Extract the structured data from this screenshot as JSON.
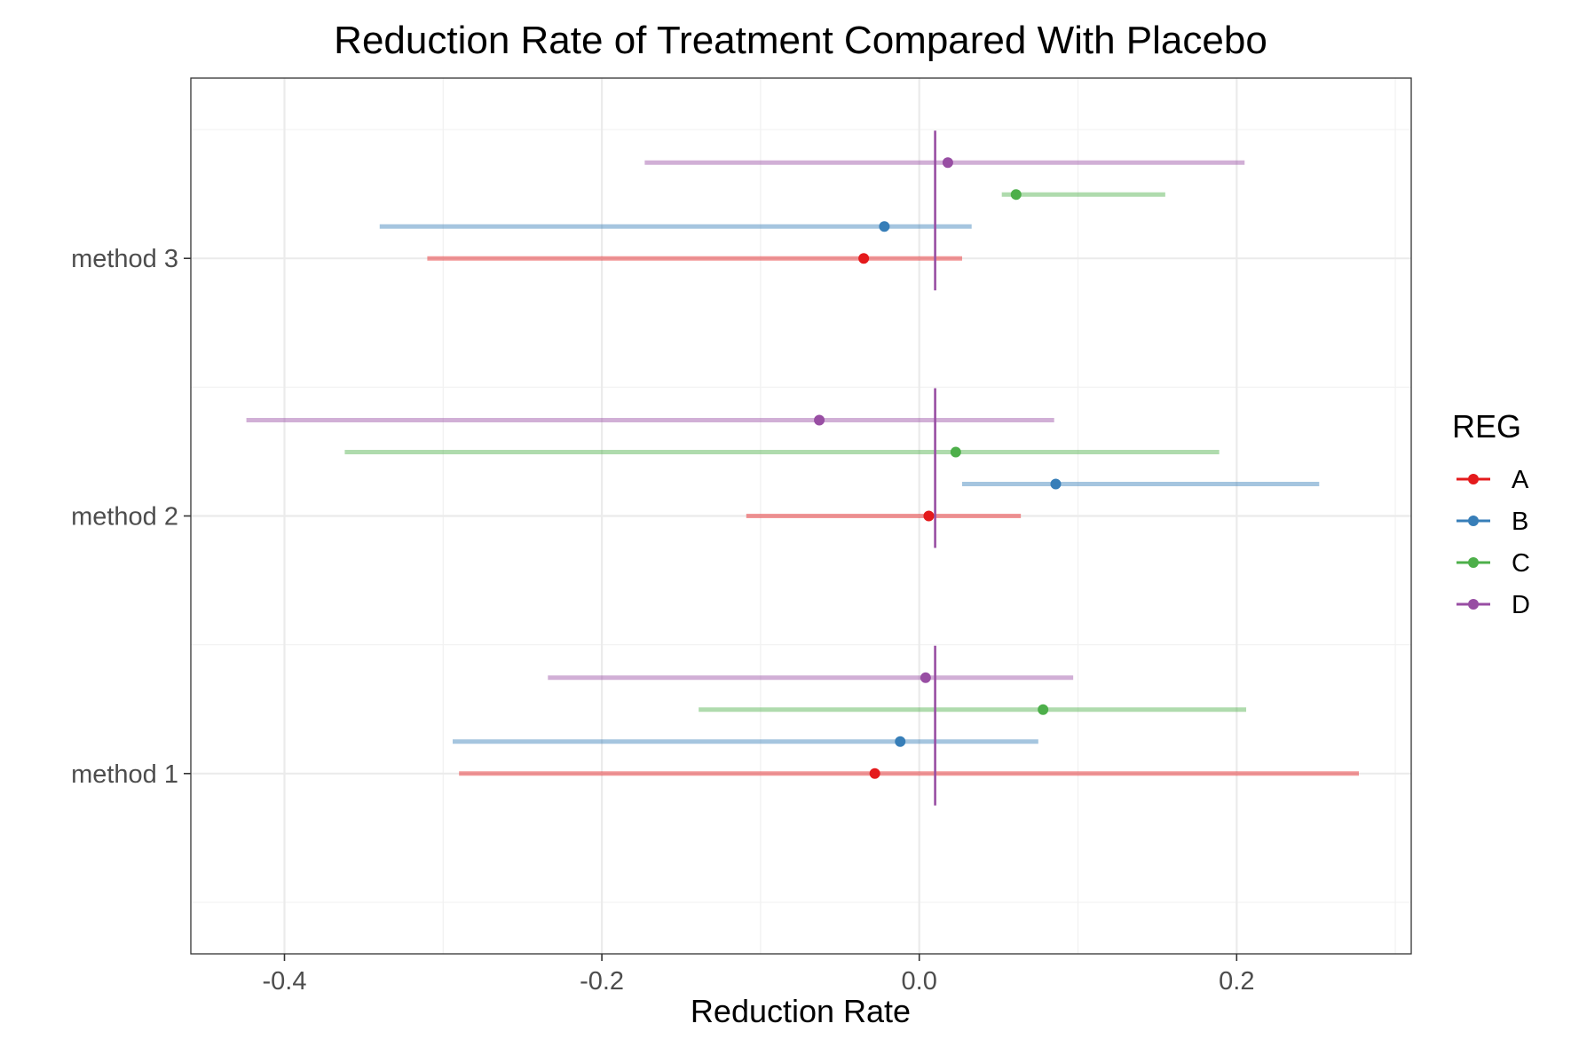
{
  "chart_data": {
    "type": "interval-dot",
    "title": "Reduction Rate of Treatment Compared With Placebo",
    "xlabel": "Reduction Rate",
    "ylabel": "",
    "xlim": [
      -0.459,
      0.31
    ],
    "x_ticks": [
      -0.4,
      -0.2,
      0.0,
      0.2
    ],
    "x_tick_labels": [
      "-0.4",
      "-0.2",
      "0.0",
      "0.2"
    ],
    "categories": [
      "method 1",
      "method 2",
      "method 3"
    ],
    "reference_line": 0.01,
    "grid": true,
    "legend": {
      "title": "REG",
      "position": "right"
    },
    "series": [
      {
        "name": "A",
        "color": "#E41A1C",
        "points": [
          {
            "category": "method 1",
            "estimate": -0.028,
            "lower": -0.29,
            "upper": 0.277
          },
          {
            "category": "method 2",
            "estimate": 0.006,
            "lower": -0.109,
            "upper": 0.064
          },
          {
            "category": "method 3",
            "estimate": -0.035,
            "lower": -0.31,
            "upper": 0.027
          }
        ]
      },
      {
        "name": "B",
        "color": "#377EB8",
        "points": [
          {
            "category": "method 1",
            "estimate": -0.012,
            "lower": -0.294,
            "upper": 0.075
          },
          {
            "category": "method 2",
            "estimate": 0.086,
            "lower": 0.027,
            "upper": 0.252
          },
          {
            "category": "method 3",
            "estimate": -0.022,
            "lower": -0.34,
            "upper": 0.033
          }
        ]
      },
      {
        "name": "C",
        "color": "#4DAF4A",
        "points": [
          {
            "category": "method 1",
            "estimate": 0.078,
            "lower": -0.139,
            "upper": 0.206
          },
          {
            "category": "method 2",
            "estimate": 0.023,
            "lower": -0.362,
            "upper": 0.189
          },
          {
            "category": "method 3",
            "estimate": 0.061,
            "lower": 0.052,
            "upper": 0.155
          }
        ]
      },
      {
        "name": "D",
        "color": "#984EA3",
        "points": [
          {
            "category": "method 1",
            "estimate": 0.004,
            "lower": -0.234,
            "upper": 0.097
          },
          {
            "category": "method 2",
            "estimate": -0.063,
            "lower": -0.424,
            "upper": 0.085
          },
          {
            "category": "method 3",
            "estimate": 0.018,
            "lower": -0.173,
            "upper": 0.205
          }
        ]
      }
    ]
  }
}
